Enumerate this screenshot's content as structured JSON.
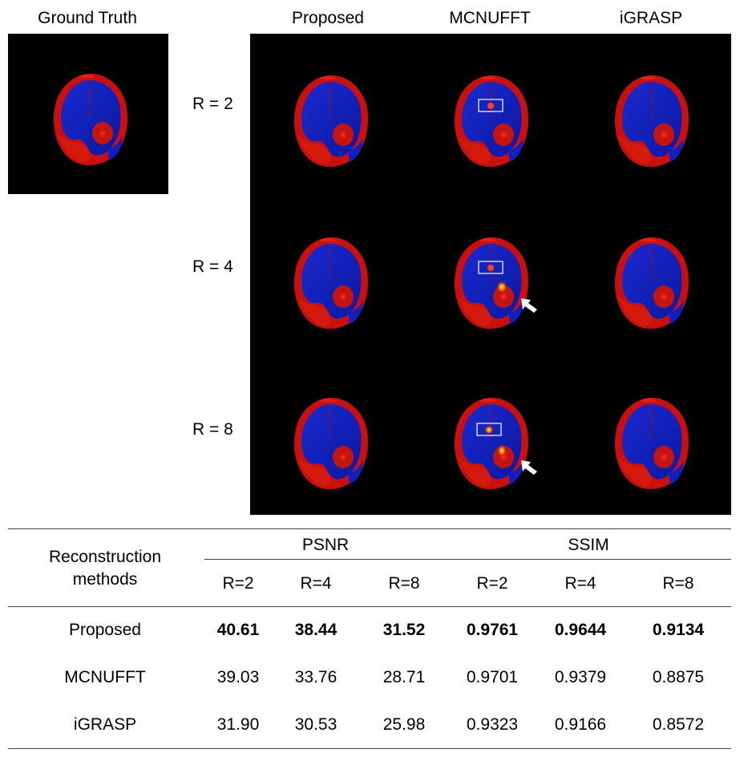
{
  "figure": {
    "ground_truth_label": "Ground Truth",
    "column_headers": [
      "Proposed",
      "MCNUFFT",
      "iGRASP"
    ],
    "row_labels": [
      "R = 2",
      "R = 4",
      "R = 8"
    ]
  },
  "table": {
    "row_header": "Reconstruction methods",
    "row_header_line1": "Reconstruction",
    "row_header_line2": "methods",
    "groups": [
      "PSNR",
      "SSIM"
    ],
    "subheaders": [
      "R=2",
      "R=4",
      "R=8",
      "R=2",
      "R=4",
      "R=8"
    ],
    "rows": [
      {
        "method": "Proposed",
        "values": [
          "40.61",
          "38.44",
          "31.52",
          "0.9761",
          "0.9644",
          "0.9134"
        ],
        "bold": true
      },
      {
        "method": "MCNUFFT",
        "values": [
          "39.03",
          "33.76",
          "28.71",
          "0.9701",
          "0.9379",
          "0.8875"
        ],
        "bold": false
      },
      {
        "method": "iGRASP",
        "values": [
          "31.90",
          "30.53",
          "25.98",
          "0.9323",
          "0.9166",
          "0.8572"
        ],
        "bold": false
      }
    ]
  }
}
